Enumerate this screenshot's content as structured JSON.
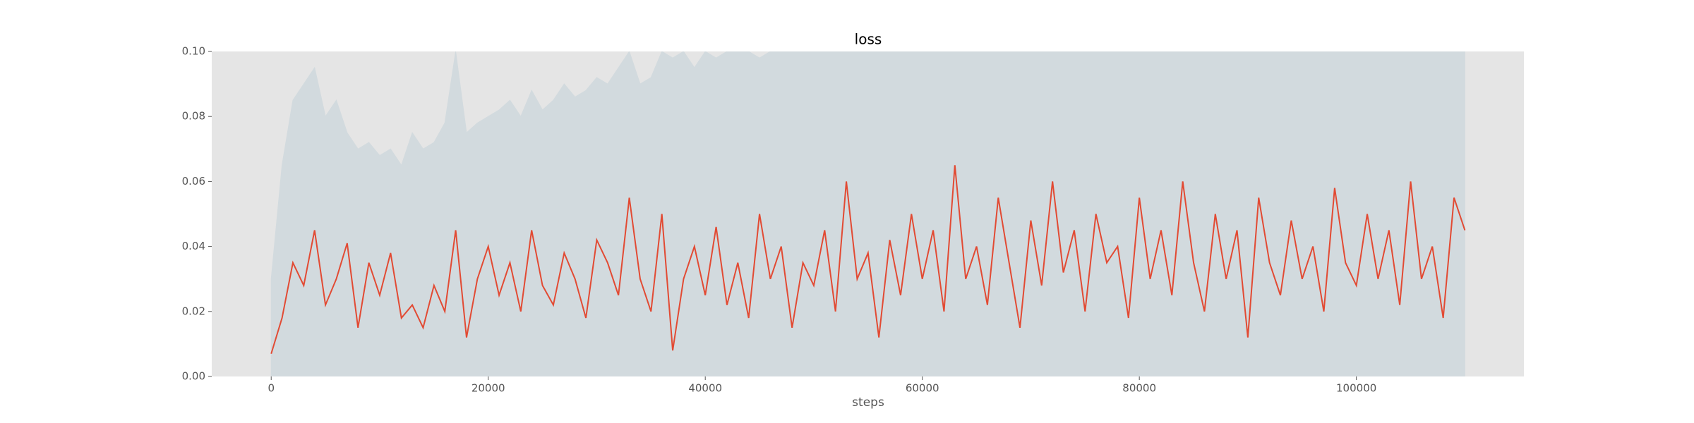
{
  "chart_data": {
    "type": "line",
    "title": "loss",
    "xlabel": "steps",
    "x": [
      0,
      1000,
      2000,
      3000,
      4000,
      5000,
      6000,
      7000,
      8000,
      9000,
      10000,
      11000,
      12000,
      13000,
      14000,
      15000,
      16000,
      17000,
      18000,
      19000,
      20000,
      21000,
      22000,
      23000,
      24000,
      25000,
      26000,
      27000,
      28000,
      29000,
      30000,
      31000,
      32000,
      33000,
      34000,
      35000,
      36000,
      37000,
      38000,
      39000,
      40000,
      41000,
      42000,
      43000,
      44000,
      45000,
      46000,
      47000,
      48000,
      49000,
      50000,
      51000,
      52000,
      53000,
      54000,
      55000,
      56000,
      57000,
      58000,
      59000,
      60000,
      61000,
      62000,
      63000,
      64000,
      65000,
      66000,
      67000,
      68000,
      69000,
      70000,
      71000,
      72000,
      73000,
      74000,
      75000,
      76000,
      77000,
      78000,
      79000,
      80000,
      81000,
      82000,
      83000,
      84000,
      85000,
      86000,
      87000,
      88000,
      89000,
      90000,
      91000,
      92000,
      93000,
      94000,
      95000,
      96000,
      97000,
      98000,
      99000,
      100000,
      101000,
      102000,
      103000,
      104000,
      105000,
      106000,
      107000,
      108000,
      109000,
      110000
    ],
    "series": [
      {
        "color": "#d2dade",
        "fill": true,
        "values": [
          0.03,
          0.065,
          0.085,
          0.09,
          0.095,
          0.08,
          0.085,
          0.075,
          0.07,
          0.072,
          0.068,
          0.07,
          0.065,
          0.075,
          0.07,
          0.072,
          0.078,
          0.1,
          0.075,
          0.078,
          0.08,
          0.082,
          0.085,
          0.08,
          0.088,
          0.082,
          0.085,
          0.09,
          0.086,
          0.088,
          0.092,
          0.09,
          0.095,
          0.1,
          0.09,
          0.092,
          0.1,
          0.098,
          0.1,
          0.095,
          0.1,
          0.098,
          0.1,
          0.102,
          0.1,
          0.098,
          0.1,
          0.105,
          0.1,
          0.11,
          0.1,
          0.105,
          0.1,
          0.11,
          0.1,
          0.105,
          0.1,
          0.11,
          0.105,
          0.1,
          0.11,
          0.105,
          0.11,
          0.1,
          0.105,
          0.11,
          0.1,
          0.11,
          0.105,
          0.11,
          0.1,
          0.11,
          0.105,
          0.11,
          0.1,
          0.105,
          0.11,
          0.1,
          0.11,
          0.105,
          0.11,
          0.1,
          0.105,
          0.11,
          0.1,
          0.11,
          0.105,
          0.1,
          0.11,
          0.105,
          0.11,
          0.1,
          0.105,
          0.11,
          0.1,
          0.11,
          0.105,
          0.1,
          0.11,
          0.105,
          0.11,
          0.1,
          0.105,
          0.11,
          0.1,
          0.11,
          0.105,
          0.1,
          0.11,
          0.105,
          0.1
        ]
      },
      {
        "color": "#e24a33",
        "fill": false,
        "values": [
          0.007,
          0.018,
          0.035,
          0.028,
          0.045,
          0.022,
          0.03,
          0.041,
          0.015,
          0.035,
          0.025,
          0.038,
          0.018,
          0.022,
          0.015,
          0.028,
          0.02,
          0.045,
          0.012,
          0.03,
          0.04,
          0.025,
          0.035,
          0.02,
          0.045,
          0.028,
          0.022,
          0.038,
          0.03,
          0.018,
          0.042,
          0.035,
          0.025,
          0.055,
          0.03,
          0.02,
          0.05,
          0.008,
          0.03,
          0.04,
          0.025,
          0.046,
          0.022,
          0.035,
          0.018,
          0.05,
          0.03,
          0.04,
          0.015,
          0.035,
          0.028,
          0.045,
          0.02,
          0.06,
          0.03,
          0.038,
          0.012,
          0.042,
          0.025,
          0.05,
          0.03,
          0.045,
          0.02,
          0.065,
          0.03,
          0.04,
          0.022,
          0.055,
          0.035,
          0.015,
          0.048,
          0.028,
          0.06,
          0.032,
          0.045,
          0.02,
          0.05,
          0.035,
          0.04,
          0.018,
          0.055,
          0.03,
          0.045,
          0.025,
          0.06,
          0.035,
          0.02,
          0.05,
          0.03,
          0.045,
          0.012,
          0.055,
          0.035,
          0.025,
          0.048,
          0.03,
          0.04,
          0.02,
          0.058,
          0.035,
          0.028,
          0.05,
          0.03,
          0.045,
          0.022,
          0.06,
          0.03,
          0.04,
          0.018,
          0.055,
          0.045
        ]
      }
    ],
    "xlim": [
      -5478,
      115438
    ],
    "xticks": [
      0,
      20000,
      40000,
      60000,
      80000,
      100000
    ],
    "ylim": [
      0,
      0.1
    ],
    "yticks": [
      {
        "value": 0,
        "label": "0.00"
      },
      {
        "value": 0.02,
        "label": "0.02"
      },
      {
        "value": 0.04,
        "label": "0.04"
      },
      {
        "value": 0.06,
        "label": "0.06"
      },
      {
        "value": 0.08,
        "label": "0.08"
      },
      {
        "value": 0.1,
        "label": "0.10"
      }
    ],
    "background": "#e5e5e5"
  }
}
